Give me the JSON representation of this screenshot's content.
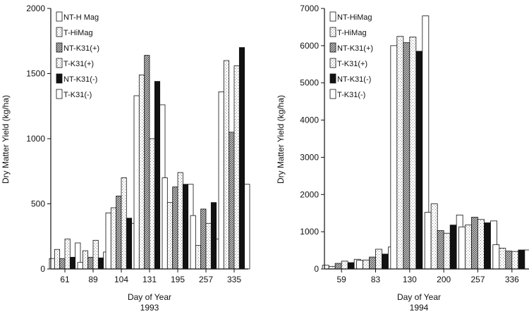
{
  "chart_data": [
    {
      "type": "bar",
      "title": "",
      "xlabel": "Day of Year",
      "year": "1993",
      "ylabel": "Dry Matter Yield (kg/ha)",
      "ylim": [
        0,
        2000
      ],
      "yticks": [
        0,
        500,
        1000,
        1500,
        2000
      ],
      "grid": false,
      "legend_position": "top-left",
      "categories": [
        "61",
        "89",
        "104",
        "131",
        "195",
        "257",
        "335"
      ],
      "series": [
        {
          "name": "NT-H Mag",
          "fill": "white",
          "values": [
            80,
            50,
            430,
            1330,
            700,
            410,
            1360
          ]
        },
        {
          "name": "T-HiMag",
          "fill": "light",
          "values": [
            150,
            140,
            470,
            1490,
            510,
            180,
            1600
          ]
        },
        {
          "name": "NT-K31(+)",
          "fill": "dark",
          "values": [
            80,
            90,
            560,
            1640,
            630,
            460,
            1050
          ]
        },
        {
          "name": "T-K31(+)",
          "fill": "light",
          "values": [
            230,
            220,
            700,
            1000,
            740,
            350,
            1560
          ]
        },
        {
          "name": "NT-K31(-)",
          "fill": "black",
          "values": [
            90,
            85,
            390,
            1440,
            650,
            510,
            1700
          ]
        },
        {
          "name": "T-K31(-)",
          "fill": "white",
          "values": [
            200,
            130,
            350,
            1260,
            650,
            230,
            650
          ]
        }
      ]
    },
    {
      "type": "bar",
      "title": "",
      "xlabel": "Day of Year",
      "year": "1994",
      "ylabel": "Dry Matter Yield (kg/ha)",
      "ylim": [
        0,
        7000
      ],
      "yticks": [
        0,
        1000,
        2000,
        3000,
        4000,
        5000,
        6000,
        7000
      ],
      "grid": false,
      "legend_position": "top-left",
      "categories": [
        "59",
        "83",
        "130",
        "200",
        "257",
        "336"
      ],
      "series": [
        {
          "name": "NT-HiMag",
          "fill": "white",
          "values": [
            100,
            230,
            6000,
            1520,
            1130,
            650
          ]
        },
        {
          "name": "T-HiMag",
          "fill": "light",
          "values": [
            70,
            240,
            6250,
            1750,
            1180,
            560
          ]
        },
        {
          "name": "NT-K31(+)",
          "fill": "dark",
          "values": [
            150,
            320,
            6080,
            1030,
            1390,
            480
          ]
        },
        {
          "name": "T-K31(+)",
          "fill": "light",
          "values": [
            210,
            530,
            6230,
            960,
            1330,
            470
          ]
        },
        {
          "name": "NT-K31(-)",
          "fill": "black",
          "values": [
            170,
            400,
            5850,
            1180,
            1240,
            510
          ]
        },
        {
          "name": "T-K31(-)",
          "fill": "white",
          "values": [
            260,
            590,
            6800,
            1450,
            1290,
            510
          ]
        }
      ]
    }
  ]
}
